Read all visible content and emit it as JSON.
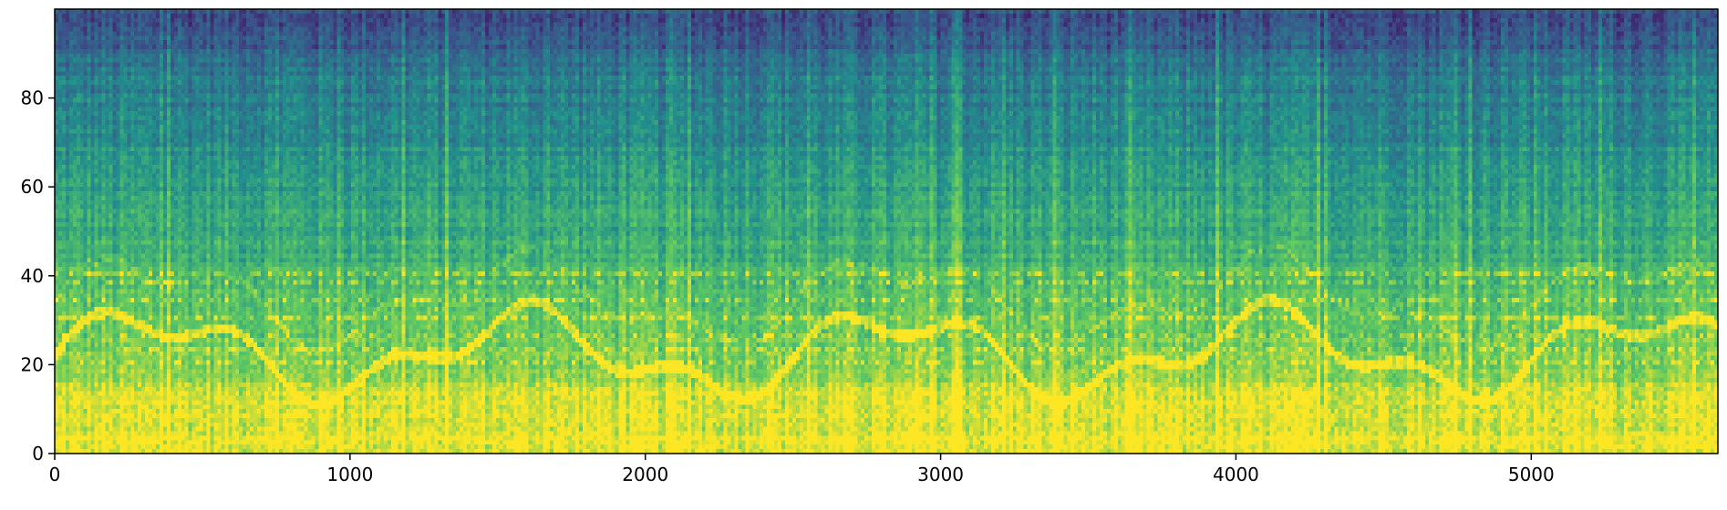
{
  "chart_data": {
    "type": "heatmap",
    "description_kind": "spectrogram",
    "colormap": "viridis",
    "colormap_stops": [
      "#440154",
      "#3b528b",
      "#21918c",
      "#5ec962",
      "#fde725"
    ],
    "title": "",
    "xlabel": "",
    "ylabel": "",
    "xlim": [
      0,
      5632
    ],
    "ylim": [
      0,
      100
    ],
    "x_ticks": [
      0,
      1000,
      2000,
      3000,
      4000,
      5000
    ],
    "x_tick_labels": [
      "0",
      "1000",
      "2000",
      "3000",
      "4000",
      "5000"
    ],
    "y_ticks": [
      0,
      20,
      40,
      60,
      80
    ],
    "y_tick_labels": [
      "0",
      "20",
      "40",
      "60",
      "80"
    ],
    "grid": false,
    "legend": "none",
    "n_frequency_bins": 100,
    "intensity_trend": "highest near bin 0, decreasing toward bin 100",
    "melodic_highlight_bins": [
      20,
      23,
      26,
      30,
      34,
      38,
      40
    ]
  }
}
